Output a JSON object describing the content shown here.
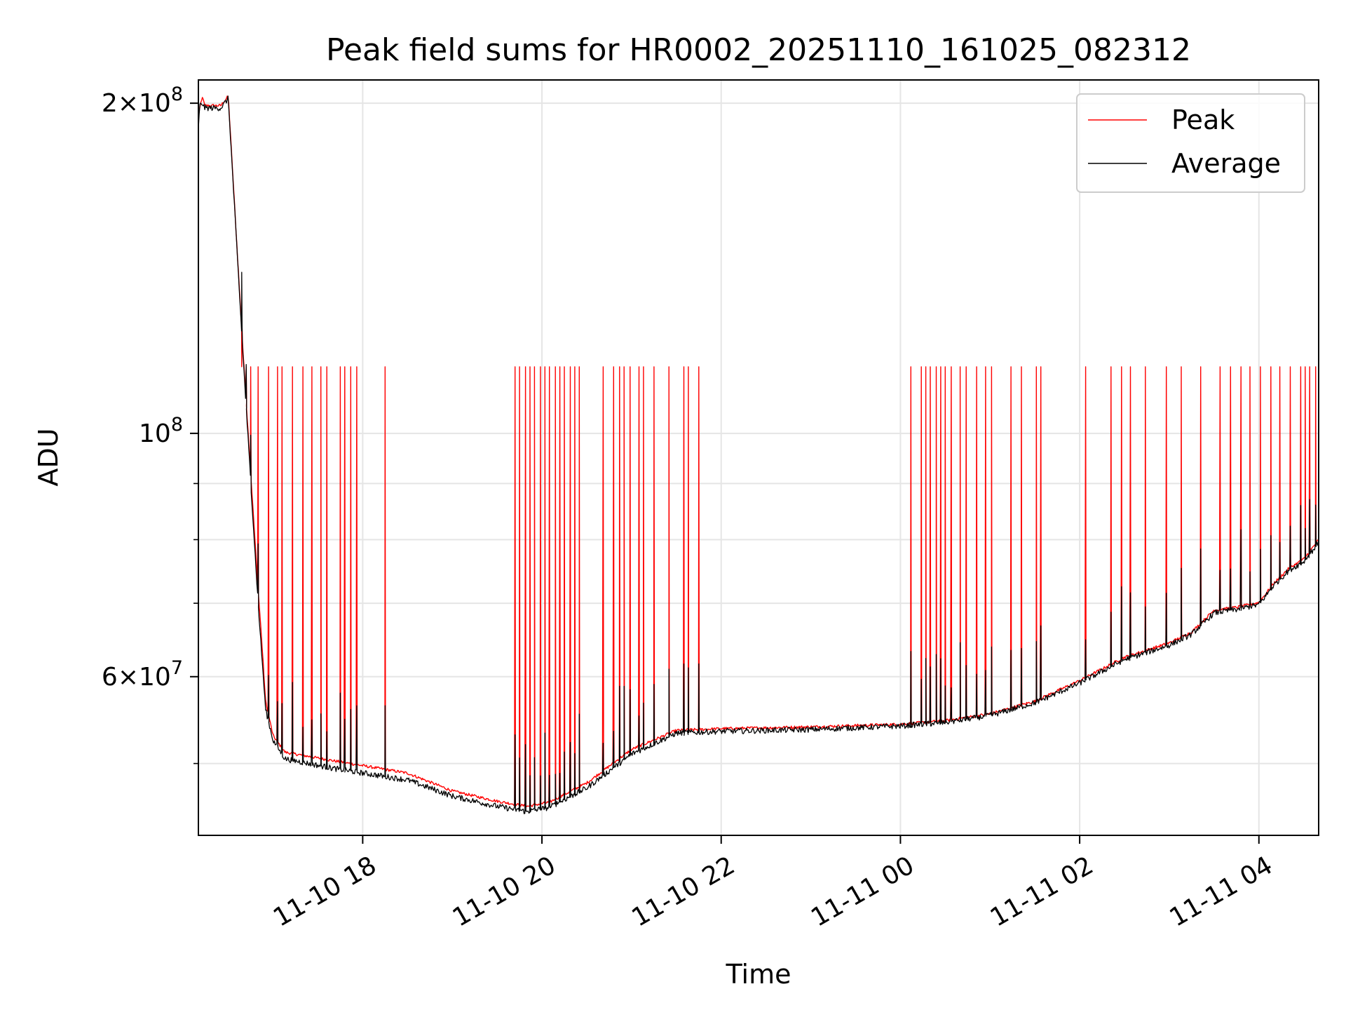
{
  "chart_data": {
    "type": "line",
    "title": "Peak field sums for HR0002_20251110_161025_082312",
    "xlabel": "Time",
    "ylabel": "ADU",
    "x_axis": {
      "type": "time",
      "range": [
        "2025-11-10 16:10",
        "2025-11-11 04:40"
      ],
      "ticks": [
        {
          "value": "2025-11-10 18:00",
          "label": "11-10 18"
        },
        {
          "value": "2025-11-10 20:00",
          "label": "11-10 20"
        },
        {
          "value": "2025-11-10 22:00",
          "label": "11-10 22"
        },
        {
          "value": "2025-11-11 00:00",
          "label": "11-11 00"
        },
        {
          "value": "2025-11-11 02:00",
          "label": "11-11 02"
        },
        {
          "value": "2025-11-11 04:00",
          "label": "11-11 04"
        }
      ]
    },
    "y_axis": {
      "scale": "log",
      "range": [
        43000000,
        210000000
      ],
      "major_ticks": [
        {
          "value": 200000000,
          "mantissa": "2",
          "exp": "8"
        },
        {
          "value": 100000000,
          "mantissa": "",
          "exp": "8"
        },
        {
          "value": 60000000,
          "mantissa": "6",
          "exp": "7"
        }
      ],
      "minor_ticks": [
        50000000,
        70000000,
        80000000,
        90000000
      ]
    },
    "grid": true,
    "legend": {
      "position": "top-right"
    },
    "spike_level": 115000000,
    "peak_spike_times": [
      "2025-11-10 16:39",
      "2025-11-10 16:42",
      "2025-11-10 16:45",
      "2025-11-10 16:50",
      "2025-11-10 16:57",
      "2025-11-10 17:03",
      "2025-11-10 17:06",
      "2025-11-10 17:13",
      "2025-11-10 17:20",
      "2025-11-10 17:26",
      "2025-11-10 17:32",
      "2025-11-10 17:36",
      "2025-11-10 17:45",
      "2025-11-10 17:48",
      "2025-11-10 17:52",
      "2025-11-10 17:56",
      "2025-11-10 18:15",
      "2025-11-10 19:42",
      "2025-11-10 19:45",
      "2025-11-10 19:49",
      "2025-11-10 19:52",
      "2025-11-10 19:55",
      "2025-11-10 19:59",
      "2025-11-10 20:02",
      "2025-11-10 20:05",
      "2025-11-10 20:09",
      "2025-11-10 20:12",
      "2025-11-10 20:15",
      "2025-11-10 20:19",
      "2025-11-10 20:22",
      "2025-11-10 20:25",
      "2025-11-10 20:41",
      "2025-11-10 20:48",
      "2025-11-10 20:52",
      "2025-11-10 20:55",
      "2025-11-10 20:59",
      "2025-11-10 21:05",
      "2025-11-10 21:08",
      "2025-11-10 21:15",
      "2025-11-10 21:25",
      "2025-11-10 21:35",
      "2025-11-10 21:38",
      "2025-11-10 21:45",
      "2025-11-11 00:07",
      "2025-11-11 00:14",
      "2025-11-11 00:17",
      "2025-11-11 00:20",
      "2025-11-11 00:24",
      "2025-11-11 00:27",
      "2025-11-11 00:30",
      "2025-11-11 00:34",
      "2025-11-11 00:40",
      "2025-11-11 00:44",
      "2025-11-11 00:51",
      "2025-11-11 00:57",
      "2025-11-11 01:01",
      "2025-11-11 01:14",
      "2025-11-11 01:21",
      "2025-11-11 01:31",
      "2025-11-11 01:34",
      "2025-11-11 02:04",
      "2025-11-11 02:21",
      "2025-11-11 02:28",
      "2025-11-11 02:34",
      "2025-11-11 02:44",
      "2025-11-11 02:58",
      "2025-11-11 03:08",
      "2025-11-11 03:21",
      "2025-11-11 03:34",
      "2025-11-11 03:41",
      "2025-11-11 03:48",
      "2025-11-11 03:54",
      "2025-11-11 04:01",
      "2025-11-11 04:08",
      "2025-11-11 04:14",
      "2025-11-11 04:21",
      "2025-11-11 04:28",
      "2025-11-11 04:31",
      "2025-11-11 04:34",
      "2025-11-11 04:38"
    ],
    "series": [
      {
        "name": "Peak",
        "color": "#ff0000",
        "x": [
          "2025-11-10 16:10",
          "2025-11-10 16:13",
          "2025-11-10 16:14",
          "2025-11-10 16:16",
          "2025-11-10 16:25",
          "2025-11-10 16:30",
          "2025-11-10 16:40",
          "2025-11-10 16:50",
          "2025-11-10 16:52",
          "2025-11-10 16:55",
          "2025-11-10 17:00",
          "2025-11-10 17:08",
          "2025-11-10 17:40",
          "2025-11-10 18:30",
          "2025-11-10 19:00",
          "2025-11-10 19:30",
          "2025-11-10 19:50",
          "2025-11-10 20:05",
          "2025-11-10 20:30",
          "2025-11-10 21:00",
          "2025-11-10 21:30",
          "2025-11-10 22:00",
          "2025-11-10 23:00",
          "2025-11-11 00:00",
          "2025-11-11 00:30",
          "2025-11-11 01:00",
          "2025-11-11 01:30",
          "2025-11-11 02:00",
          "2025-11-11 02:30",
          "2025-11-11 03:00",
          "2025-11-11 03:15",
          "2025-11-11 03:30",
          "2025-11-11 03:45",
          "2025-11-11 04:00",
          "2025-11-11 04:10",
          "2025-11-11 04:20",
          "2025-11-11 04:30",
          "2025-11-11 04:40"
        ],
        "y": [
          196000000,
          203000000,
          199000000,
          199000000,
          199000000,
          203000000,
          118000000,
          72000000,
          66000000,
          57000000,
          53000000,
          51200000,
          50300000,
          49000000,
          47200000,
          46200000,
          45700000,
          46100000,
          48000000,
          51500000,
          53600000,
          53800000,
          54000000,
          54300000,
          54700000,
          55500000,
          57000000,
          59500000,
          62500000,
          64400000,
          65900000,
          69000000,
          69400000,
          70100000,
          73000000,
          75300000,
          76800000,
          80000000
        ]
      },
      {
        "name": "Average",
        "color": "#000000",
        "x": [
          "2025-11-10 16:10",
          "2025-11-10 16:11",
          "2025-11-10 16:13",
          "2025-11-10 16:14",
          "2025-11-10 16:16",
          "2025-11-10 16:25",
          "2025-11-10 16:30",
          "2025-11-10 16:40",
          "2025-11-10 16:50",
          "2025-11-10 16:52",
          "2025-11-10 16:55",
          "2025-11-10 17:00",
          "2025-11-10 17:08",
          "2025-11-10 17:40",
          "2025-11-10 18:30",
          "2025-11-10 19:00",
          "2025-11-10 19:30",
          "2025-11-10 19:50",
          "2025-11-10 20:05",
          "2025-11-10 20:30",
          "2025-11-10 21:00",
          "2025-11-10 21:30",
          "2025-11-10 22:00",
          "2025-11-10 23:00",
          "2025-11-11 00:00",
          "2025-11-11 00:30",
          "2025-11-11 01:00",
          "2025-11-11 01:30",
          "2025-11-11 02:00",
          "2025-11-11 02:30",
          "2025-11-11 03:00",
          "2025-11-11 03:15",
          "2025-11-11 03:30",
          "2025-11-11 03:45",
          "2025-11-11 04:00",
          "2025-11-11 04:10",
          "2025-11-11 04:20",
          "2025-11-11 04:30",
          "2025-11-11 04:40"
        ],
        "y": [
          190000000,
          199000000,
          200000000,
          198000000,
          198000000,
          198000000,
          202000000,
          117000000,
          70000000,
          64000000,
          56000000,
          52500000,
          50500000,
          49500000,
          48300000,
          46700000,
          45700000,
          45200000,
          45600000,
          47500000,
          51000000,
          53300000,
          53500000,
          53700000,
          54100000,
          54500000,
          55300000,
          56800000,
          59200000,
          62200000,
          64100000,
          65600000,
          68600000,
          69100000,
          69800000,
          72700000,
          75000000,
          76400000,
          79500000
        ]
      }
    ]
  }
}
